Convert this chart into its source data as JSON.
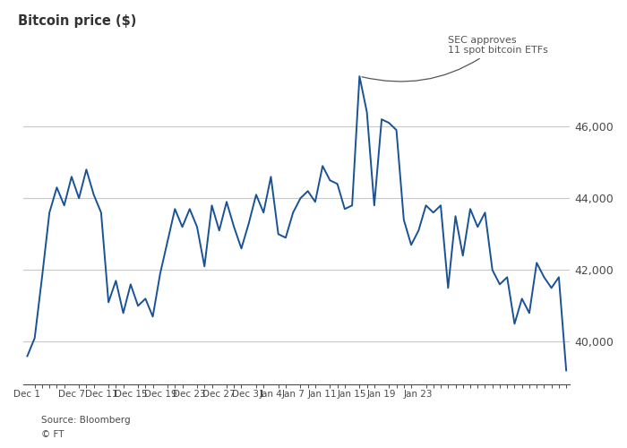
{
  "title": "Bitcoin price ($)",
  "source": "Source: Bloomberg",
  "footer": "© FT",
  "annotation": "SEC approves\n11 spot bitcoin ETFs",
  "line_color": "#1a5296",
  "background_color": "#ffffff",
  "grid_color": "#c8c8c8",
  "text_color": "#4a4a4a",
  "title_color": "#333333",
  "annotation_color": "#555555",
  "ylim": [
    38800,
    48200
  ],
  "yticks": [
    40000,
    42000,
    44000,
    46000
  ],
  "x_labels": [
    "Dec 1",
    "Dec 7",
    "Dec 11",
    "Dec 15",
    "Dec 19",
    "Dec 23",
    "Dec 27",
    "Dec 31",
    "Jan 4",
    "Jan 7",
    "Jan 11",
    "Jan 15",
    "Jan 19",
    "Jan 23"
  ],
  "x_label_indices": [
    0,
    6,
    10,
    14,
    18,
    22,
    26,
    30,
    33,
    36,
    40,
    44,
    48,
    53
  ],
  "prices": [
    39600,
    40100,
    41800,
    43600,
    44300,
    43800,
    44600,
    44000,
    44800,
    44100,
    43600,
    41100,
    41700,
    40800,
    41600,
    41000,
    41200,
    40700,
    41900,
    42800,
    43700,
    43200,
    43700,
    43200,
    42100,
    43800,
    43100,
    43900,
    43200,
    42600,
    43300,
    44100,
    43600,
    44600,
    43000,
    42900,
    43600,
    44000,
    44200,
    43900,
    44900,
    44500,
    44400,
    43700,
    43800,
    47400,
    46400,
    43800,
    46200,
    46100,
    45900,
    43400,
    42700,
    43100,
    43800,
    43600,
    43800,
    41500,
    43500,
    42400,
    43700,
    43200,
    43600,
    42000,
    41600,
    41800,
    40500,
    41200,
    40800,
    42200,
    41800,
    41500,
    41800,
    39200
  ]
}
